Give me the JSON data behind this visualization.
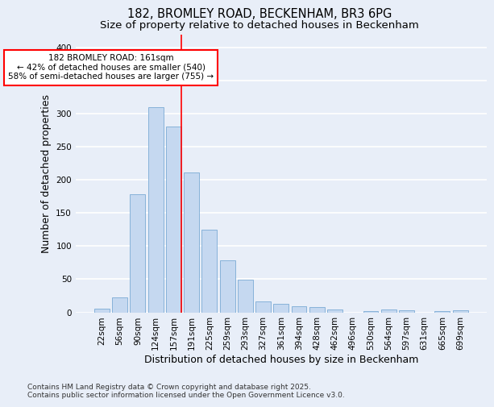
{
  "title_line1": "182, BROMLEY ROAD, BECKENHAM, BR3 6PG",
  "title_line2": "Size of property relative to detached houses in Beckenham",
  "xlabel": "Distribution of detached houses by size in Beckenham",
  "ylabel": "Number of detached properties",
  "bar_labels": [
    "22sqm",
    "56sqm",
    "90sqm",
    "124sqm",
    "157sqm",
    "191sqm",
    "225sqm",
    "259sqm",
    "293sqm",
    "327sqm",
    "361sqm",
    "394sqm",
    "428sqm",
    "462sqm",
    "496sqm",
    "530sqm",
    "564sqm",
    "597sqm",
    "631sqm",
    "665sqm",
    "699sqm"
  ],
  "bar_values": [
    6,
    22,
    178,
    310,
    281,
    211,
    125,
    78,
    49,
    16,
    13,
    9,
    8,
    4,
    0,
    2,
    4,
    3,
    0,
    2,
    3
  ],
  "bar_color": "#c5d8f0",
  "bar_edge_color": "#7aaad4",
  "background_color": "#e8eef8",
  "grid_color": "#ffffff",
  "vline_color": "red",
  "annotation_text": "182 BROMLEY ROAD: 161sqm\n← 42% of detached houses are smaller (540)\n58% of semi-detached houses are larger (755) →",
  "annotation_box_color": "white",
  "annotation_box_edge": "red",
  "ylim": [
    0,
    420
  ],
  "yticks": [
    0,
    50,
    100,
    150,
    200,
    250,
    300,
    350,
    400
  ],
  "footnote": "Contains HM Land Registry data © Crown copyright and database right 2025.\nContains public sector information licensed under the Open Government Licence v3.0.",
  "title_fontsize": 10.5,
  "subtitle_fontsize": 9.5,
  "axis_label_fontsize": 9,
  "tick_fontsize": 7.5,
  "annotation_fontsize": 7.5,
  "footnote_fontsize": 6.5
}
